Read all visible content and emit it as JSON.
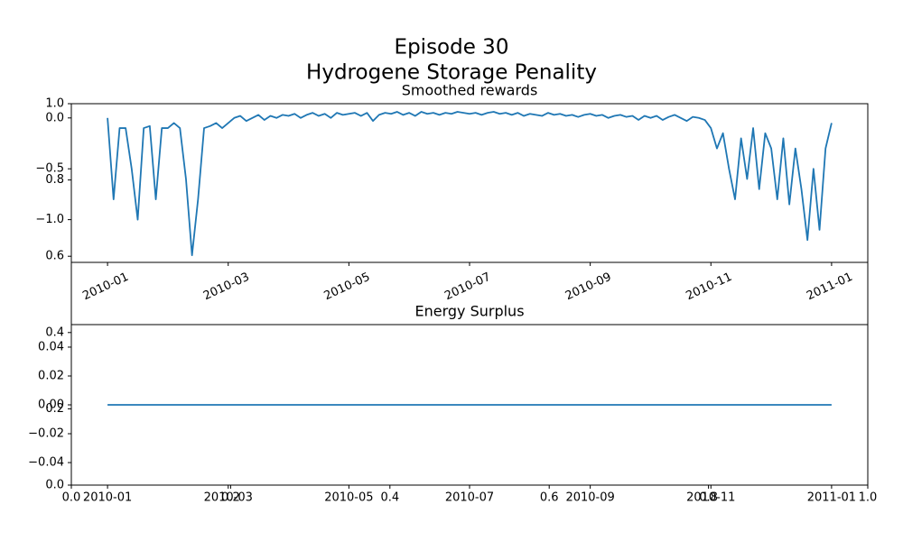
{
  "figure": {
    "title_lines": [
      "Episode 30",
      "Hydrogene Storage Penality"
    ]
  },
  "chart_data": [
    {
      "type": "axes",
      "xlim": [
        0,
        1
      ],
      "ylim": [
        0,
        1
      ],
      "xticks": [
        {
          "value": 0,
          "label": "0.0"
        },
        0.2,
        0.4,
        0.6,
        0.8,
        {
          "value": 1,
          "label": "1.0"
        }
      ],
      "yticks": [
        {
          "value": 0,
          "label": "0.0"
        },
        0.2,
        0.4,
        0.6,
        0.8,
        {
          "value": 1,
          "label": "1.0"
        }
      ]
    },
    {
      "type": "line",
      "title": "Smoothed rewards",
      "color": "#1f77b4",
      "xtick_rotation": 25,
      "xlim": [
        -0.6,
        12.6
      ],
      "ylim": [
        -1.42,
        0.14
      ],
      "xticks": [
        {
          "value": 0,
          "label": "2010-01"
        },
        {
          "value": 2,
          "label": "2010-03"
        },
        {
          "value": 4,
          "label": "2010-05"
        },
        {
          "value": 6,
          "label": "2010-07"
        },
        {
          "value": 8,
          "label": "2010-09"
        },
        {
          "value": 10,
          "label": "2010-11"
        },
        {
          "value": 12,
          "label": "2011-01"
        }
      ],
      "yticks": [
        {
          "value": 0,
          "label": "0.0"
        },
        {
          "value": -0.5,
          "label": "−0.5"
        },
        {
          "value": -1,
          "label": "−1.0"
        }
      ],
      "x": [
        0,
        0.1,
        0.2,
        0.3,
        0.4,
        0.5,
        0.6,
        0.7,
        0.8,
        0.9,
        1,
        1.1,
        1.2,
        1.3,
        1.4,
        1.5,
        1.6,
        1.7,
        1.8,
        1.9,
        2,
        2.1,
        2.2,
        2.3,
        2.4,
        2.5,
        2.6,
        2.7,
        2.8,
        2.9,
        3,
        3.1,
        3.2,
        3.3,
        3.4,
        3.5,
        3.6,
        3.7,
        3.8,
        3.9,
        4,
        4.1,
        4.2,
        4.3,
        4.4,
        4.5,
        4.6,
        4.7,
        4.8,
        4.9,
        5,
        5.1,
        5.2,
        5.3,
        5.4,
        5.5,
        5.6,
        5.7,
        5.8,
        5.9,
        6,
        6.1,
        6.2,
        6.3,
        6.4,
        6.5,
        6.6,
        6.7,
        6.8,
        6.9,
        7,
        7.1,
        7.2,
        7.3,
        7.4,
        7.5,
        7.6,
        7.7,
        7.8,
        7.9,
        8,
        8.1,
        8.2,
        8.3,
        8.4,
        8.5,
        8.6,
        8.7,
        8.8,
        8.9,
        9,
        9.1,
        9.2,
        9.3,
        9.4,
        9.5,
        9.6,
        9.7,
        9.8,
        9.9,
        10,
        10.1,
        10.2,
        10.3,
        10.4,
        10.5,
        10.6,
        10.7,
        10.8,
        10.9,
        11,
        11.1,
        11.2,
        11.3,
        11.4,
        11.5,
        11.6,
        11.7,
        11.8,
        11.9,
        12
      ],
      "values": [
        0,
        -0.8,
        -0.1,
        -0.1,
        -0.5,
        -1,
        -0.1,
        -0.08,
        -0.8,
        -0.1,
        -0.1,
        -0.05,
        -0.1,
        -0.6,
        -1.35,
        -0.8,
        -0.1,
        -0.08,
        -0.05,
        -0.1,
        -0.05,
        0,
        0.02,
        -0.03,
        0,
        0.03,
        -0.02,
        0.02,
        0,
        0.03,
        0.02,
        0.04,
        0,
        0.03,
        0.05,
        0.02,
        0.04,
        0,
        0.05,
        0.03,
        0.04,
        0.05,
        0.02,
        0.05,
        -0.03,
        0.03,
        0.05,
        0.04,
        0.06,
        0.03,
        0.05,
        0.02,
        0.06,
        0.04,
        0.05,
        0.03,
        0.05,
        0.04,
        0.06,
        0.05,
        0.04,
        0.05,
        0.03,
        0.05,
        0.06,
        0.04,
        0.05,
        0.03,
        0.05,
        0.02,
        0.04,
        0.03,
        0.02,
        0.05,
        0.03,
        0.04,
        0.02,
        0.03,
        0.01,
        0.03,
        0.04,
        0.02,
        0.03,
        0,
        0.02,
        0.03,
        0.01,
        0.02,
        -0.02,
        0.02,
        0,
        0.02,
        -0.02,
        0.01,
        0.03,
        0,
        -0.03,
        0.01,
        0,
        -0.02,
        -0.1,
        -0.3,
        -0.15,
        -0.5,
        -0.8,
        -0.2,
        -0.6,
        -0.1,
        -0.7,
        -0.15,
        -0.3,
        -0.8,
        -0.2,
        -0.85,
        -0.3,
        -0.7,
        -1.2,
        -0.5,
        -1.1,
        -0.3,
        -0.05
      ]
    },
    {
      "type": "line",
      "title": "Energy Surplus",
      "color": "#1f77b4",
      "xlim": [
        -0.6,
        12.6
      ],
      "ylim": [
        -0.0556,
        0.0556
      ],
      "xticks": [
        {
          "value": 0,
          "label": "2010-01"
        },
        {
          "value": 2,
          "label": "2010-03"
        },
        {
          "value": 4,
          "label": "2010-05"
        },
        {
          "value": 6,
          "label": "2010-07"
        },
        {
          "value": 8,
          "label": "2010-09"
        },
        {
          "value": 10,
          "label": "2010-11"
        },
        {
          "value": 12,
          "label": "2011-01"
        }
      ],
      "yticks": [
        {
          "value": -0.04,
          "label": "−0.04"
        },
        {
          "value": -0.02,
          "label": "−0.02"
        },
        {
          "value": 0,
          "label": "0.00"
        },
        0.02,
        0.04
      ],
      "x": [
        0,
        12
      ],
      "values": [
        0,
        0
      ]
    }
  ]
}
